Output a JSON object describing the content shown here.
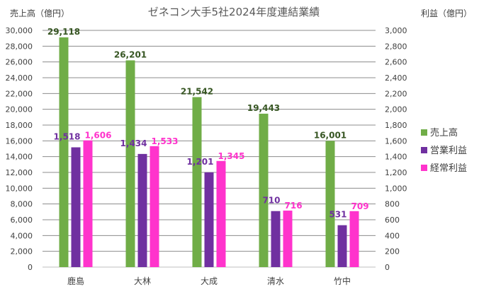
{
  "chart_data": {
    "type": "bar",
    "title": "ゼネコン大手5社2024年度連結業績",
    "ylabel_left": "売上高（億円）",
    "ylabel_right": "利益（億円）",
    "ylim_left": [
      0,
      30000
    ],
    "ylim_right": [
      0,
      3000
    ],
    "y_ticks_left": [
      "0",
      "2,000",
      "4,000",
      "6,000",
      "8,000",
      "10,000",
      "12,000",
      "14,000",
      "16,000",
      "18,000",
      "20,000",
      "22,000",
      "24,000",
      "26,000",
      "28,000",
      "30,000"
    ],
    "y_ticks_right": [
      "0",
      "200",
      "400",
      "600",
      "800",
      "1,000",
      "1,200",
      "1,400",
      "1,600",
      "1,800",
      "2,000",
      "2,200",
      "2,400",
      "2,600",
      "2,800",
      "3,000"
    ],
    "grid": true,
    "legend_position": "right",
    "categories": [
      "鹿島",
      "大林",
      "大成",
      "清水",
      "竹中"
    ],
    "series": [
      {
        "name": "売上高",
        "axis": "left",
        "color": "#70ad47",
        "label_color": "#375623",
        "values": [
          29118,
          26201,
          21542,
          19443,
          16001
        ],
        "labels": [
          "29,118",
          "26,201",
          "21,542",
          "19,443",
          "16,001"
        ]
      },
      {
        "name": "営業利益",
        "axis": "right",
        "color": "#7030a0",
        "label_color": "#7030a0",
        "values": [
          1518,
          1434,
          1201,
          710,
          531
        ],
        "labels": [
          "1,518",
          "1,434",
          "1,201",
          "710",
          "531"
        ]
      },
      {
        "name": "経常利益",
        "axis": "right",
        "color": "#ff33cc",
        "label_color": "#ff33cc",
        "values": [
          1606,
          1533,
          1345,
          716,
          709
        ],
        "labels": [
          "1,606",
          "1,533",
          "1,345",
          "716",
          "709"
        ]
      }
    ]
  }
}
